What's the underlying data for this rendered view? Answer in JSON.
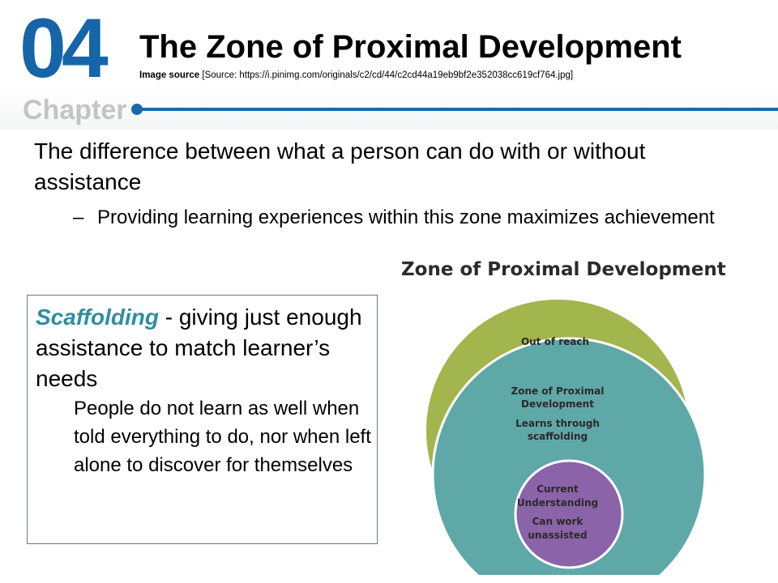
{
  "header": {
    "chapter_number": "04",
    "chapter_word": "Chapter",
    "title": "The Zone of Proximal Development",
    "image_source_label": "Image source",
    "image_source_text": " [Source: https://i.pinimg.com/originals/c2/cd/44/c2cd44a19eb9bf2e352038cc619cf764.jpg]"
  },
  "body": {
    "main_text": "The difference between what a person can do with or without assistance",
    "sub_dash": "–",
    "sub_text": "Providing learning experiences within this zone maximizes achievement"
  },
  "scaffolding": {
    "term": "Scaffolding",
    "definition": " - giving just enough assistance to match learner’s needs",
    "detail": "People do not learn as well when told everything to do, nor when left alone to discover for themselves"
  },
  "diagram": {
    "title": "Zone of Proximal Development",
    "outer_label": "Out of reach",
    "middle_label_1": "Zone of Proximal",
    "middle_label_2": "Development",
    "middle_label_3": "Learns through",
    "middle_label_4": "scaffolding",
    "inner_label_1": "Current",
    "inner_label_2": "Understanding",
    "inner_label_3": "Can work",
    "inner_label_4": "unassisted",
    "colors": {
      "outer": "#a3b54d",
      "middle": "#5fa8a8",
      "inner": "#8b63a8",
      "ring": "#ffffff",
      "accent_blue": "#1565a8",
      "scaffold_term": "#2f8f9d"
    }
  }
}
